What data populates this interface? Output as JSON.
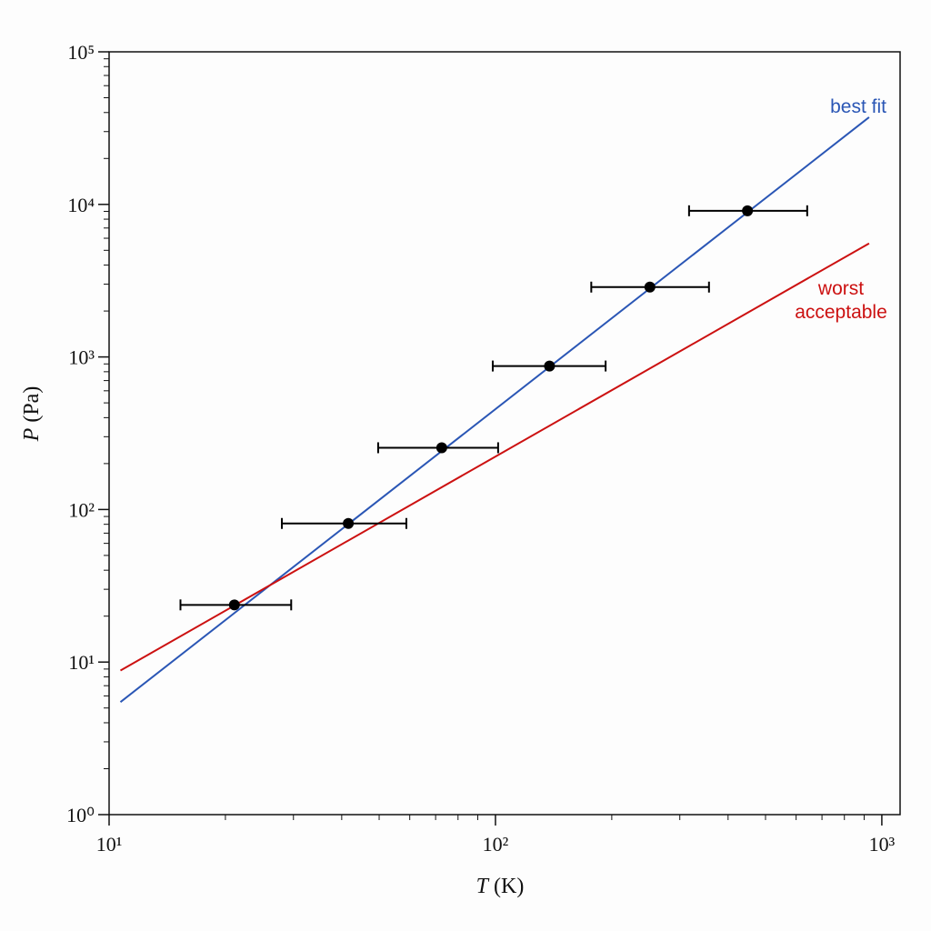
{
  "chart_data": {
    "type": "scatter",
    "log_x": true,
    "log_y": true,
    "x_label": {
      "symbol": "T",
      "unit": "(K)"
    },
    "y_label": {
      "symbol": "P",
      "unit": "(Pa)"
    },
    "xlim": [
      10,
      1115
    ],
    "ylim": [
      1,
      100000
    ],
    "xticks": [
      {
        "value": 10,
        "label": "10¹"
      },
      {
        "value": 100,
        "label": "10²"
      },
      {
        "value": 1000,
        "label": "10³"
      }
    ],
    "yticks": [
      {
        "value": 1,
        "label": "10⁰"
      },
      {
        "value": 10,
        "label": "10¹"
      },
      {
        "value": 100,
        "label": "10²"
      },
      {
        "value": 1000,
        "label": "10³"
      },
      {
        "value": 10000,
        "label": "10⁴"
      },
      {
        "value": 100000,
        "label": "10⁵"
      }
    ],
    "series": [
      {
        "style": "points",
        "color": "#000000",
        "x": [
          21.1,
          41.6,
          72.6,
          138,
          251,
          449
        ],
        "values": [
          23.7,
          81,
          254,
          872,
          2870,
          9080
        ],
        "xerr_minus": [
          5.8,
          13.6,
          22.9,
          39.6,
          74,
          132
        ],
        "xerr_plus": [
          8.5,
          17.2,
          29.0,
          54.8,
          106,
          192
        ]
      },
      {
        "style": "line",
        "name": "best fit",
        "color": "#2a56b5",
        "x": [
          10.7,
          927
        ],
        "values": [
          5.47,
          37250
        ]
      },
      {
        "style": "line",
        "name": "worst acceptable",
        "color": "#cc1111",
        "x": [
          10.7,
          927
        ],
        "values": [
          8.8,
          5550
        ]
      }
    ]
  }
}
